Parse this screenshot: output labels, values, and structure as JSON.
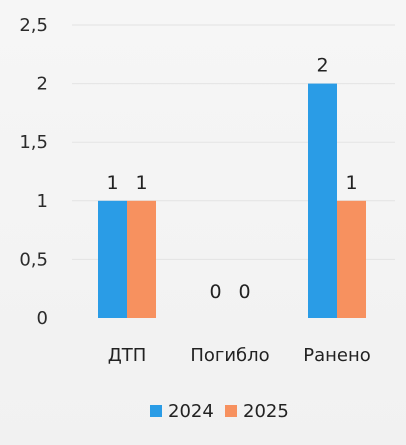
{
  "chart_data": {
    "type": "bar",
    "categories": [
      "ДТП",
      "Погибло",
      "Ранено"
    ],
    "series": [
      {
        "name": "2024",
        "values": [
          1,
          0,
          2
        ],
        "color": "#2a9ce6"
      },
      {
        "name": "2025",
        "values": [
          1,
          0,
          1
        ],
        "color": "#f7915f"
      }
    ],
    "data_labels": [
      [
        "1",
        "0",
        "2"
      ],
      [
        "1",
        "0",
        "1"
      ]
    ],
    "ylim": [
      0,
      2.5
    ],
    "y_ticks": [
      "0",
      "0,5",
      "1",
      "1,5",
      "2",
      "2,5"
    ],
    "y_tick_values": [
      0,
      0.5,
      1,
      1.5,
      2,
      2.5
    ],
    "grid": true,
    "legend_position": "bottom",
    "title": "",
    "xlabel": "",
    "ylabel": ""
  }
}
